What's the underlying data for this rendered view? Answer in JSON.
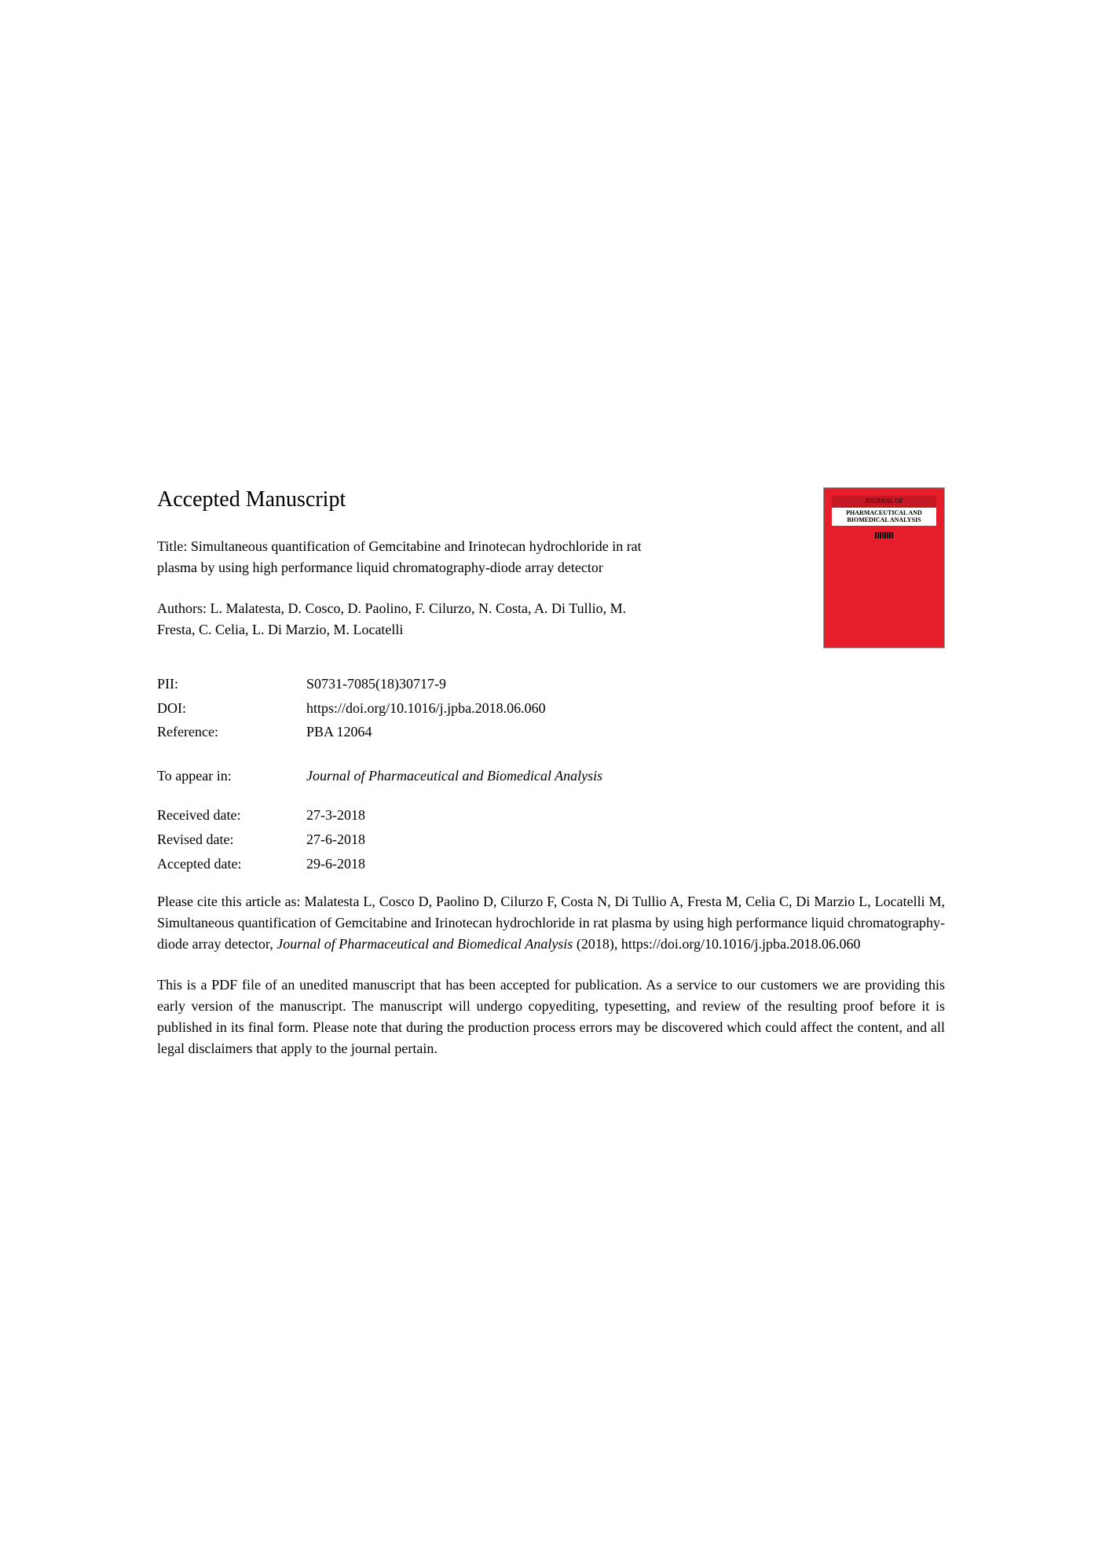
{
  "header": {
    "title": "Accepted Manuscript",
    "article_title": "Title: Simultaneous quantification of Gemcitabine and Irinotecan hydrochloride in rat plasma by using high performance liquid chromatography-diode array detector",
    "authors": "Authors: L. Malatesta, D. Cosco, D. Paolino, F. Cilurzo, N. Costa, A. Di Tullio, M. Fresta, C. Celia, L. Di Marzio, M. Locatelli"
  },
  "journal_cover": {
    "journal_label": "JOURNAL OF",
    "journal_name": "PHARMACEUTICAL AND BIOMEDICAL ANALYSIS",
    "background_color": "#e61e2b"
  },
  "metadata": {
    "pii_label": "PII:",
    "pii_value": "S0731-7085(18)30717-9",
    "doi_label": "DOI:",
    "doi_value": "https://doi.org/10.1016/j.jpba.2018.06.060",
    "reference_label": "Reference:",
    "reference_value": "PBA 12064",
    "appear_label": "To appear in:",
    "appear_value": "Journal of Pharmaceutical and Biomedical Analysis",
    "received_label": "Received date:",
    "received_value": "27-3-2018",
    "revised_label": "Revised date:",
    "revised_value": "27-6-2018",
    "accepted_label": "Accepted date:",
    "accepted_value": "29-6-2018"
  },
  "citation": {
    "prefix": "Please cite this article as: Malatesta L, Cosco D, Paolino D, Cilurzo F, Costa N, Di Tullio A, Fresta M, Celia C, Di Marzio L, Locatelli M, Simultaneous quantification of Gemcitabine and Irinotecan hydrochloride in rat plasma by using high performance liquid chromatography-diode array detector, ",
    "journal_italic": "Journal of Pharmaceutical and Biomedical Analysis",
    "suffix": " (2018), https://doi.org/10.1016/j.jpba.2018.06.060"
  },
  "disclaimer": "This is a PDF file of an unedited manuscript that has been accepted for publication. As a service to our customers we are providing this early version of the manuscript. The manuscript will undergo copyediting, typesetting, and review of the resulting proof before it is published in its final form. Please note that during the production process errors may be discovered which could affect the content, and all legal disclaimers that apply to the journal pertain."
}
